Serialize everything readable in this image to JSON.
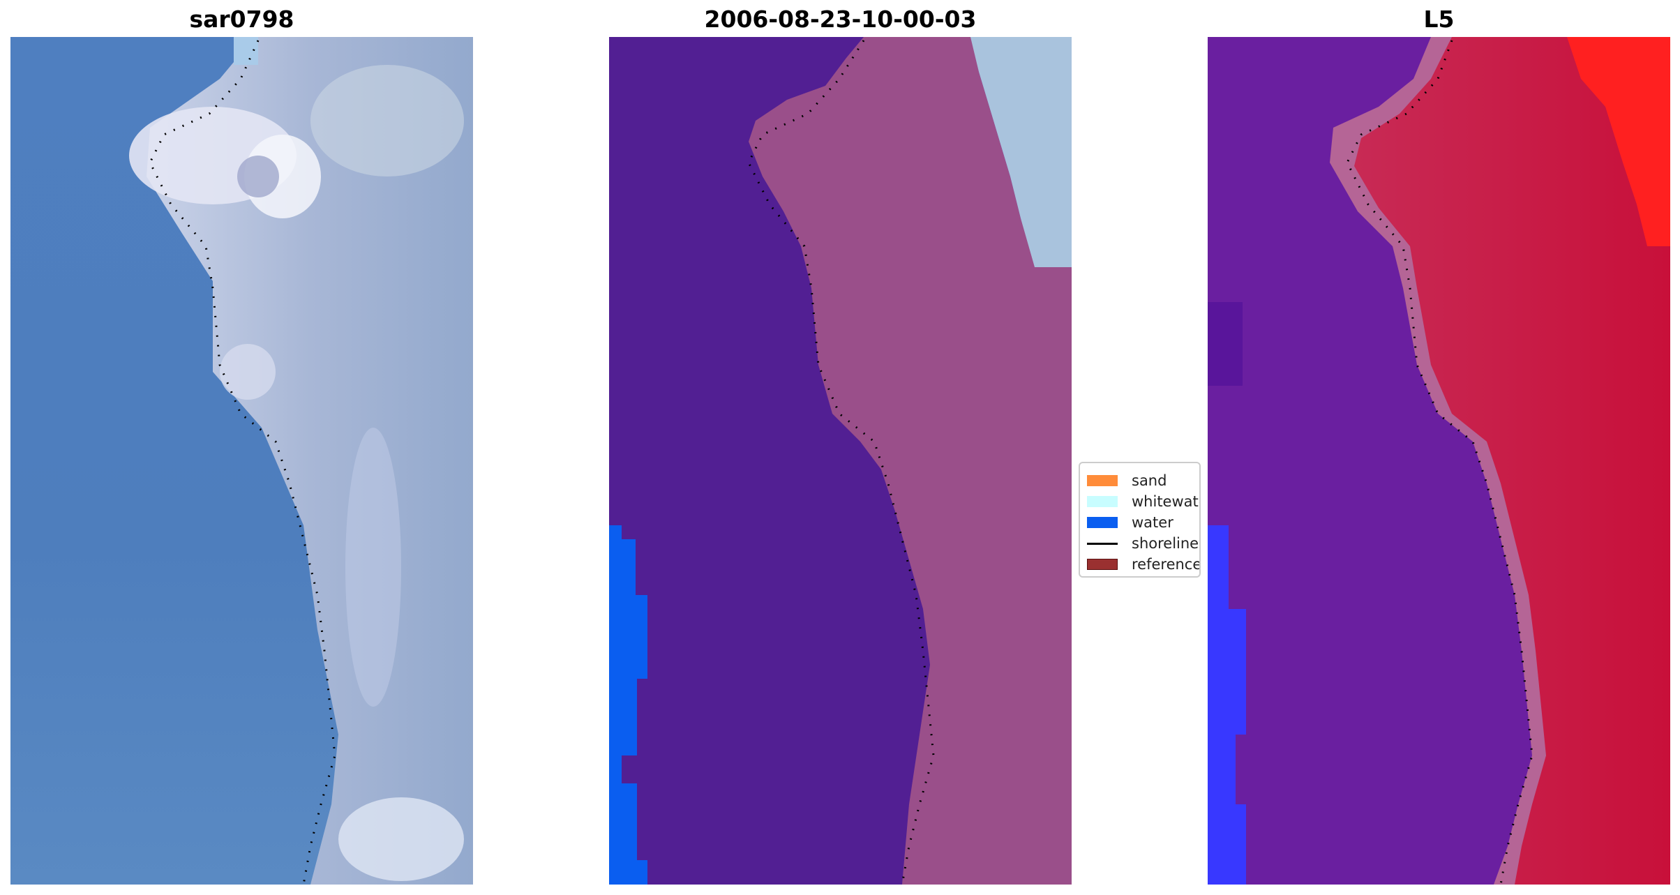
{
  "panels": [
    {
      "title": "sar0798"
    },
    {
      "title": "2006-08-23-10-00-03"
    },
    {
      "title": "L5"
    }
  ],
  "legend": {
    "items": [
      {
        "label": "sand",
        "color": "#ff8c3a"
      },
      {
        "label": "whitewater",
        "color": "#c8fdff"
      },
      {
        "label": "water",
        "color": "#0a5ef0"
      },
      {
        "label": "shoreline",
        "color": "#000000"
      },
      {
        "label": "reference s",
        "color": "#9a3030"
      }
    ]
  },
  "colors": {
    "rgb_water": "#4f7fc0",
    "rgb_land": "#9fb1d6",
    "rgb_bright": "#e8eaf5",
    "class_water_overlay": "#521f93",
    "class_land_overlay": "#9a4f8a",
    "class_whitewater": "#a9c3dd",
    "class_water_edge": "#0a5ef0",
    "index_negative": "#6a1fa0",
    "index_positive": "#c8103a",
    "index_edge": "#3838ff",
    "index_hot": "#ff2020"
  }
}
